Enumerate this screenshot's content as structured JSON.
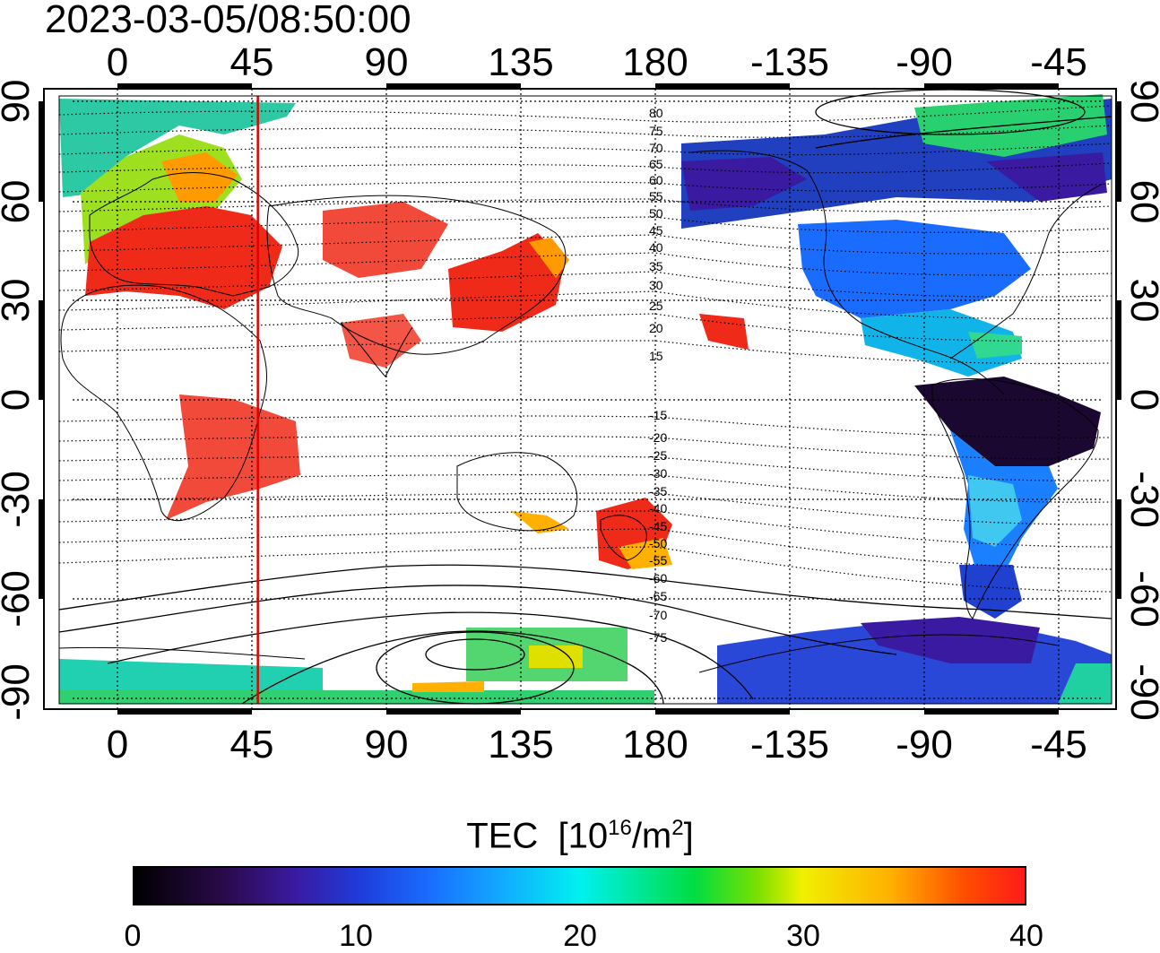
{
  "title": "2023-03-05/08:50:00",
  "map": {
    "lon_ticks": [
      "0",
      "45",
      "90",
      "135",
      "180",
      "-135",
      "-90",
      "-45"
    ],
    "lat_ticks": [
      "90",
      "60",
      "30",
      "0",
      "-30",
      "-60",
      "-90"
    ],
    "lon_range": [
      -20,
      350
    ],
    "lat_range": [
      -93,
      93
    ],
    "grid": true,
    "marker_longitude": 47,
    "marker_color": "#e00000",
    "contour_labels": [
      "80",
      "75",
      "70",
      "65",
      "60",
      "55",
      "50",
      "45",
      "40",
      "35",
      "30",
      "25",
      "20",
      "15",
      "-15",
      "-20",
      "-25",
      "-30",
      "-35",
      "-40",
      "-45",
      "-50",
      "-55",
      "-60",
      "-65",
      "-70",
      "-75"
    ]
  },
  "colorbar": {
    "title": "TEC",
    "unit_base": "[10",
    "unit_exp": "16",
    "unit_mid": "/m",
    "unit_exp2": "2",
    "unit_close": "]",
    "ticks": [
      "0",
      "10",
      "20",
      "30",
      "40"
    ],
    "range": [
      0,
      40
    ],
    "colors": [
      "#000000",
      "#3a1aa0",
      "#1a6cff",
      "#00f0f0",
      "#00dd40",
      "#f0f000",
      "#ff1a1a"
    ]
  }
}
